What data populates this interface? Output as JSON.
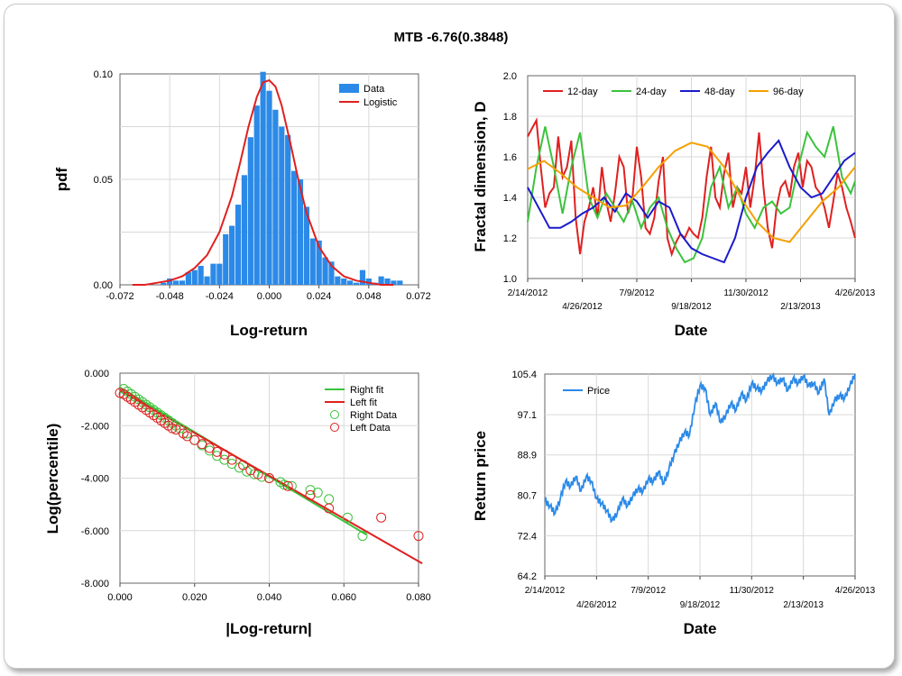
{
  "title": "MTB -6.76(0.3848)",
  "chart_data": [
    {
      "type": "bar",
      "panel": "histogram",
      "xlabel": "Log-return",
      "ylabel": "pdf",
      "xlim": [
        -0.072,
        0.072
      ],
      "ylim": [
        0,
        0.1
      ],
      "x_ticks": [
        "-0.072",
        "-0.048",
        "-0.024",
        "0.000",
        "0.024",
        "0.048",
        "0.072"
      ],
      "y_ticks": [
        "0.00",
        "0.05",
        "0.10"
      ],
      "grid": true,
      "legend_position": "top-right",
      "series": [
        {
          "name": "Data",
          "color": "#2b8ae8",
          "x": [
            -0.051,
            -0.048,
            -0.045,
            -0.042,
            -0.039,
            -0.036,
            -0.033,
            -0.03,
            -0.027,
            -0.024,
            -0.021,
            -0.018,
            -0.015,
            -0.012,
            -0.009,
            -0.006,
            -0.003,
            0.0,
            0.003,
            0.006,
            0.009,
            0.012,
            0.015,
            0.018,
            0.021,
            0.024,
            0.027,
            0.03,
            0.033,
            0.036,
            0.039,
            0.042,
            0.045,
            0.048,
            0.051,
            0.054,
            0.057,
            0.06,
            0.063
          ],
          "values": [
            0.001,
            0.003,
            0.002,
            0.002,
            0.006,
            0.007,
            0.009,
            0.004,
            0.01,
            0.01,
            0.024,
            0.028,
            0.038,
            0.052,
            0.07,
            0.085,
            0.101,
            0.092,
            0.083,
            0.075,
            0.071,
            0.054,
            0.05,
            0.037,
            0.022,
            0.021,
            0.013,
            0.011,
            0.004,
            0.003,
            0.002,
            0.001,
            0.007,
            0.003,
            0.001,
            0.004,
            0.003,
            0.002,
            0.002
          ]
        },
        {
          "name": "Logistic",
          "color": "#e02020",
          "type": "line",
          "x": [
            -0.066,
            -0.06,
            -0.054,
            -0.048,
            -0.042,
            -0.036,
            -0.03,
            -0.024,
            -0.018,
            -0.014,
            -0.01,
            -0.006,
            -0.003,
            0.0,
            0.003,
            0.006,
            0.01,
            0.014,
            0.018,
            0.024,
            0.03,
            0.036,
            0.042,
            0.048,
            0.054,
            0.06
          ],
          "values": [
            0.0,
            0.0,
            0.001,
            0.002,
            0.004,
            0.008,
            0.014,
            0.025,
            0.042,
            0.058,
            0.075,
            0.089,
            0.096,
            0.097,
            0.094,
            0.085,
            0.068,
            0.05,
            0.034,
            0.018,
            0.009,
            0.004,
            0.002,
            0.001,
            0.0,
            0.0
          ]
        }
      ]
    },
    {
      "type": "line",
      "panel": "fractal",
      "xlabel": "Date",
      "ylabel": "Fractal dimension, D",
      "ylim": [
        1.0,
        2.0
      ],
      "x_ticks": [
        "2/14/2012",
        "4/26/2012",
        "7/9/2012",
        "9/18/2012",
        "11/30/2012",
        "2/13/2013",
        "4/26/2013"
      ],
      "y_ticks": [
        "1.0",
        "1.2",
        "1.4",
        "1.6",
        "1.8",
        "2.0"
      ],
      "grid": true,
      "legend_position": "top",
      "x_index_range": [
        0,
        300
      ],
      "series": [
        {
          "name": "12-day",
          "color": "#e02020",
          "x": [
            0,
            4,
            8,
            12,
            16,
            20,
            24,
            28,
            32,
            36,
            40,
            44,
            48,
            52,
            56,
            60,
            64,
            68,
            72,
            76,
            80,
            84,
            88,
            92,
            96,
            100,
            104,
            108,
            112,
            116,
            120,
            124,
            128,
            132,
            136,
            140,
            144,
            148,
            152,
            156,
            160,
            164,
            168,
            172,
            176,
            180,
            184,
            188,
            192,
            196,
            200,
            204,
            208,
            212,
            216,
            220,
            224,
            228,
            232,
            236,
            240,
            244,
            248,
            252,
            256,
            260,
            264,
            268,
            272,
            276,
            280,
            284,
            288,
            292,
            296,
            300
          ],
          "values": [
            1.7,
            1.74,
            1.78,
            1.55,
            1.35,
            1.42,
            1.45,
            1.7,
            1.5,
            1.55,
            1.68,
            1.3,
            1.12,
            1.28,
            1.35,
            1.45,
            1.3,
            1.55,
            1.38,
            1.28,
            1.42,
            1.6,
            1.55,
            1.32,
            1.4,
            1.65,
            1.5,
            1.25,
            1.22,
            1.3,
            1.48,
            1.6,
            1.2,
            1.12,
            1.18,
            1.22,
            1.2,
            1.25,
            1.22,
            1.2,
            1.3,
            1.5,
            1.65,
            1.4,
            1.35,
            1.52,
            1.62,
            1.35,
            1.45,
            1.42,
            1.55,
            1.35,
            1.5,
            1.72,
            1.45,
            1.25,
            1.15,
            1.35,
            1.45,
            1.48,
            1.4,
            1.55,
            1.62,
            1.45,
            1.58,
            1.55,
            1.45,
            1.42,
            1.35,
            1.25,
            1.38,
            1.52,
            1.45,
            1.35,
            1.28,
            1.2
          ]
        },
        {
          "name": "24-day",
          "color": "#3cc23c",
          "x": [
            0,
            8,
            16,
            24,
            32,
            40,
            48,
            56,
            64,
            72,
            80,
            88,
            96,
            104,
            112,
            120,
            128,
            136,
            144,
            152,
            160,
            168,
            176,
            184,
            192,
            200,
            208,
            216,
            224,
            232,
            240,
            248,
            256,
            264,
            272,
            280,
            288,
            296,
            300
          ],
          "values": [
            1.28,
            1.55,
            1.75,
            1.55,
            1.32,
            1.55,
            1.72,
            1.4,
            1.3,
            1.42,
            1.35,
            1.28,
            1.38,
            1.25,
            1.35,
            1.4,
            1.25,
            1.15,
            1.08,
            1.1,
            1.2,
            1.45,
            1.55,
            1.35,
            1.45,
            1.32,
            1.25,
            1.35,
            1.38,
            1.32,
            1.35,
            1.55,
            1.72,
            1.65,
            1.6,
            1.75,
            1.5,
            1.42,
            1.48
          ]
        },
        {
          "name": "48-day",
          "color": "#1a1acc",
          "x": [
            0,
            10,
            20,
            30,
            40,
            50,
            60,
            70,
            80,
            90,
            100,
            110,
            120,
            130,
            140,
            150,
            160,
            170,
            180,
            190,
            200,
            210,
            220,
            230,
            240,
            250,
            260,
            270,
            280,
            290,
            300
          ],
          "values": [
            1.45,
            1.35,
            1.25,
            1.25,
            1.28,
            1.32,
            1.35,
            1.4,
            1.33,
            1.42,
            1.38,
            1.3,
            1.38,
            1.35,
            1.22,
            1.15,
            1.12,
            1.1,
            1.08,
            1.2,
            1.4,
            1.55,
            1.62,
            1.68,
            1.55,
            1.45,
            1.4,
            1.42,
            1.5,
            1.58,
            1.62
          ]
        },
        {
          "name": "96-day",
          "color": "#f5a000",
          "x": [
            0,
            15,
            30,
            45,
            60,
            75,
            90,
            105,
            120,
            135,
            150,
            165,
            180,
            195,
            210,
            225,
            240,
            255,
            270,
            285,
            300
          ],
          "values": [
            1.54,
            1.58,
            1.52,
            1.45,
            1.4,
            1.35,
            1.36,
            1.45,
            1.55,
            1.63,
            1.67,
            1.65,
            1.55,
            1.4,
            1.28,
            1.2,
            1.18,
            1.28,
            1.38,
            1.45,
            1.55
          ]
        }
      ]
    },
    {
      "type": "scatter",
      "panel": "tail",
      "xlabel": "|Log-return|",
      "ylabel": "Log(percentile)",
      "xlim": [
        0,
        0.08
      ],
      "ylim": [
        -8,
        0
      ],
      "x_ticks": [
        "0.000",
        "0.020",
        "0.040",
        "0.060",
        "0.080"
      ],
      "y_ticks": [
        "0.000",
        "-2.000",
        "-4.000",
        "-6.000",
        "-8.000"
      ],
      "grid": true,
      "legend_position": "top-right",
      "series": [
        {
          "name": "Right fit",
          "color": "#3cc23c",
          "type": "line",
          "x": [
            0.0,
            0.066
          ],
          "values": [
            -0.55,
            -6.15
          ]
        },
        {
          "name": "Left fit",
          "color": "#e02020",
          "type": "line",
          "x": [
            0.0,
            0.081
          ],
          "values": [
            -0.65,
            -7.25
          ]
        },
        {
          "name": "Right Data",
          "color": "#3cc23c",
          "type": "scatter",
          "x": [
            0.001,
            0.002,
            0.003,
            0.004,
            0.005,
            0.006,
            0.007,
            0.008,
            0.009,
            0.01,
            0.011,
            0.012,
            0.013,
            0.014,
            0.015,
            0.016,
            0.018,
            0.02,
            0.022,
            0.024,
            0.026,
            0.028,
            0.03,
            0.032,
            0.034,
            0.036,
            0.038,
            0.04,
            0.043,
            0.044,
            0.046,
            0.051,
            0.053,
            0.056,
            0.061,
            0.065
          ],
          "values": [
            -0.6,
            -0.7,
            -0.8,
            -0.9,
            -1.0,
            -1.1,
            -1.2,
            -1.3,
            -1.4,
            -1.5,
            -1.6,
            -1.7,
            -1.8,
            -1.9,
            -2.0,
            -2.1,
            -2.3,
            -2.55,
            -2.75,
            -2.95,
            -3.15,
            -3.3,
            -3.45,
            -3.6,
            -3.75,
            -3.85,
            -3.95,
            -4.0,
            -4.15,
            -4.25,
            -4.3,
            -4.45,
            -4.55,
            -4.8,
            -5.5,
            -6.2
          ]
        },
        {
          "name": "Left Data",
          "color": "#e02020",
          "type": "scatter",
          "x": [
            0.0,
            0.001,
            0.002,
            0.003,
            0.004,
            0.005,
            0.006,
            0.007,
            0.008,
            0.009,
            0.01,
            0.011,
            0.012,
            0.013,
            0.014,
            0.015,
            0.017,
            0.018,
            0.02,
            0.022,
            0.024,
            0.026,
            0.028,
            0.03,
            0.033,
            0.035,
            0.037,
            0.04,
            0.045,
            0.051,
            0.056,
            0.07,
            0.08
          ],
          "values": [
            -0.75,
            -0.8,
            -0.9,
            -1.0,
            -1.1,
            -1.2,
            -1.3,
            -1.4,
            -1.5,
            -1.6,
            -1.7,
            -1.8,
            -1.9,
            -2.0,
            -2.1,
            -2.15,
            -2.3,
            -2.4,
            -2.55,
            -2.7,
            -2.85,
            -3.0,
            -3.1,
            -3.3,
            -3.5,
            -3.7,
            -3.85,
            -4.0,
            -4.3,
            -4.65,
            -5.15,
            -5.5,
            -6.2
          ]
        }
      ]
    },
    {
      "type": "line",
      "panel": "price",
      "xlabel": "Date",
      "ylabel": "Return price",
      "ylim": [
        64.2,
        105.4
      ],
      "x_ticks": [
        "2/14/2012",
        "4/26/2012",
        "7/9/2012",
        "9/18/2012",
        "11/30/2012",
        "2/13/2013",
        "4/26/2013"
      ],
      "y_ticks": [
        "105.4",
        "97.1",
        "88.9",
        "80.7",
        "72.4",
        "64.2"
      ],
      "grid": true,
      "legend_position": "top-left",
      "x_index_range": [
        0,
        300
      ],
      "series": [
        {
          "name": "Price",
          "color": "#2b8ae8",
          "x": [
            0,
            5,
            10,
            15,
            20,
            25,
            30,
            35,
            40,
            45,
            50,
            55,
            60,
            65,
            70,
            75,
            80,
            85,
            90,
            95,
            100,
            105,
            110,
            115,
            120,
            125,
            130,
            135,
            140,
            145,
            150,
            155,
            160,
            165,
            170,
            175,
            180,
            185,
            190,
            195,
            200,
            205,
            210,
            215,
            220,
            225,
            230,
            235,
            240,
            245,
            250,
            255,
            260,
            265,
            270,
            275,
            280,
            285,
            290,
            295,
            300
          ],
          "values": [
            79.5,
            78.5,
            77.0,
            80.0,
            83.5,
            82.5,
            84.5,
            81.5,
            84.5,
            83.5,
            80.0,
            79.0,
            77.5,
            75.5,
            77.0,
            80.0,
            78.5,
            80.5,
            82.0,
            81.5,
            84.0,
            83.5,
            85.5,
            83.0,
            86.0,
            89.0,
            91.5,
            93.5,
            93.0,
            99.0,
            103.0,
            102.5,
            97.0,
            99.5,
            95.5,
            97.0,
            99.5,
            98.0,
            101.5,
            100.0,
            103.5,
            102.5,
            102.0,
            104.0,
            105.0,
            103.5,
            104.5,
            102.0,
            104.5,
            103.5,
            105.0,
            103.0,
            103.5,
            101.5,
            104.5,
            97.0,
            100.0,
            101.0,
            100.5,
            103.0,
            105.4
          ]
        }
      ]
    }
  ]
}
